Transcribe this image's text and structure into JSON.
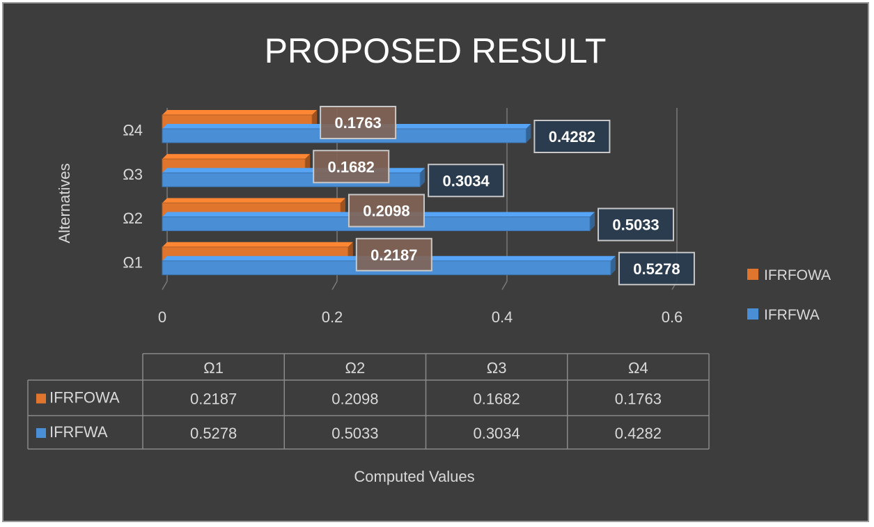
{
  "colors": {
    "background": "#3d3d3d",
    "IFRFOWA": "#e0752d",
    "IFRFWA": "#4a8fd6",
    "grid": "#7a7a7a",
    "text": "#d9d9d9"
  },
  "chart_data": {
    "type": "bar",
    "orientation": "horizontal",
    "title": "PROPOSED RESULT",
    "categories": [
      "Ω1",
      "Ω2",
      "Ω3",
      "Ω4"
    ],
    "series": [
      {
        "name": "IFRFOWA",
        "values": [
          0.2187,
          0.2098,
          0.1682,
          0.1763
        ]
      },
      {
        "name": "IFRFWA",
        "values": [
          0.5278,
          0.5033,
          0.3034,
          0.4282
        ]
      }
    ],
    "value_labels": {
      "IFRFOWA": [
        "0.2187",
        "0.2098",
        "0.1682",
        "0.1763"
      ],
      "IFRFWA": [
        "0.5278",
        "0.5033",
        "0.3034",
        "0.4282"
      ]
    },
    "xlim": [
      0,
      0.6
    ],
    "xticks": [
      "0",
      "0.2",
      "0.4",
      "0.6"
    ],
    "xtick_values": [
      0,
      0.2,
      0.4,
      0.6
    ],
    "xlabel": "Computed Values",
    "ylabel": "Alternatives",
    "legend": [
      "IFRFOWA",
      "IFRFWA"
    ],
    "legend_position": "right",
    "data_table": true,
    "grid": true
  }
}
